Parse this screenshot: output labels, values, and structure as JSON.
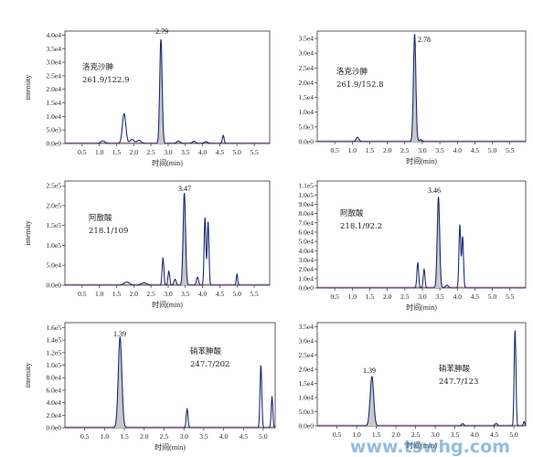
{
  "watermark": "www.tswhg.com",
  "chart_data": [
    {
      "type": "line",
      "ylabel": "intensity",
      "xlabel": "时间(min)",
      "x_ticks": [
        "0.5",
        "1.0",
        "1.5",
        "2.0",
        "2.5",
        "3.0",
        "3.5",
        "4.0",
        "4.5",
        "5.0",
        "5.5"
      ],
      "y_ticks": [
        "0.0e0",
        "5.0e3",
        "1.0e4",
        "1.5e4",
        "2.0e4",
        "2.5e4",
        "3.0e4",
        "3.5e4",
        "4.0e4"
      ],
      "xlim": [
        0.0,
        5.95
      ],
      "ylim": [
        0,
        41500
      ],
      "compound": "洛克沙胂",
      "transition": "261.9/122.9",
      "peak_label": "2.79",
      "peaks": [
        {
          "rt": 2.79,
          "height": 38500,
          "width": 0.035
        },
        {
          "rt": 1.72,
          "height": 11000,
          "width": 0.05
        },
        {
          "rt": 1.1,
          "height": 1000,
          "width": 0.06
        },
        {
          "rt": 1.95,
          "height": 1500,
          "width": 0.06
        },
        {
          "rt": 2.15,
          "height": 1200,
          "width": 0.06
        },
        {
          "rt": 3.3,
          "height": 900,
          "width": 0.05
        },
        {
          "rt": 3.75,
          "height": 800,
          "width": 0.05
        },
        {
          "rt": 4.1,
          "height": 700,
          "width": 0.05
        },
        {
          "rt": 4.6,
          "height": 3000,
          "width": 0.025
        }
      ]
    },
    {
      "type": "line",
      "ylabel": "",
      "xlabel": "时间(min)",
      "x_ticks": [
        "0.5",
        "1.0",
        "1.5",
        "2.0",
        "2.5",
        "3.0",
        "3.5",
        "4.0",
        "4.5",
        "5.0",
        "5.5"
      ],
      "y_ticks": [
        "0.0e0",
        "5.0e3",
        "1.0e4",
        "1.5e4",
        "2.0e4",
        "2.5e4",
        "3.0e4",
        "3.5e4"
      ],
      "xlim": [
        0.0,
        5.95
      ],
      "ylim": [
        0,
        37500
      ],
      "compound": "洛克沙胂",
      "transition": "261.9/152.8",
      "peak_label": "2.78",
      "peaks": [
        {
          "rt": 2.78,
          "height": 36500,
          "width": 0.035
        },
        {
          "rt": 1.15,
          "height": 1500,
          "width": 0.04
        },
        {
          "rt": 2.95,
          "height": 700,
          "width": 0.04
        }
      ]
    },
    {
      "type": "line",
      "ylabel": "intensity",
      "xlabel": "时间(min)",
      "x_ticks": [
        "0.5",
        "1.0",
        "1.5",
        "2.0",
        "2.5",
        "3.0",
        "3.5",
        "4.0",
        "4.5",
        "5.0",
        "5.5"
      ],
      "y_ticks": [
        "0.0e0",
        "5.0e4",
        "1.0e5",
        "1.5e5",
        "2.0e5",
        "2.5e5"
      ],
      "xlim": [
        0.0,
        5.95
      ],
      "ylim": [
        0,
        262000
      ],
      "compound": "阿散酸",
      "transition": "218.1/109",
      "peak_label": "3.47",
      "peaks": [
        {
          "rt": 3.47,
          "height": 232000,
          "width": 0.035
        },
        {
          "rt": 2.85,
          "height": 68000,
          "width": 0.025
        },
        {
          "rt": 3.02,
          "height": 35000,
          "width": 0.025
        },
        {
          "rt": 3.2,
          "height": 15000,
          "width": 0.03
        },
        {
          "rt": 3.85,
          "height": 20000,
          "width": 0.03
        },
        {
          "rt": 4.07,
          "height": 170000,
          "width": 0.025
        },
        {
          "rt": 4.16,
          "height": 160000,
          "width": 0.025
        },
        {
          "rt": 5.0,
          "height": 28000,
          "width": 0.02
        },
        {
          "rt": 1.8,
          "height": 8000,
          "width": 0.08
        },
        {
          "rt": 2.3,
          "height": 6000,
          "width": 0.08
        }
      ]
    },
    {
      "type": "line",
      "ylabel": "",
      "xlabel": "时间(min)",
      "x_ticks": [
        "0.5",
        "1.0",
        "1.5",
        "2.0",
        "2.5",
        "3.0",
        "3.5",
        "4.0",
        "4.5",
        "5.0",
        "5.5"
      ],
      "y_ticks": [
        "0.0e0",
        "1.0e4",
        "2.0e4",
        "3.0e4",
        "4.0e4",
        "5.0e4",
        "6.0e4",
        "7.0e4",
        "8.0e4",
        "9.0e4",
        "1.0e5",
        "1.1e5"
      ],
      "xlim": [
        0.0,
        5.95
      ],
      "ylim": [
        0,
        115000
      ],
      "compound": "阿散酸",
      "transition": "218.1/92.2",
      "peak_label": "3.46",
      "peaks": [
        {
          "rt": 3.46,
          "height": 98000,
          "width": 0.035
        },
        {
          "rt": 2.87,
          "height": 27000,
          "width": 0.025
        },
        {
          "rt": 3.05,
          "height": 20000,
          "width": 0.025
        },
        {
          "rt": 4.07,
          "height": 68000,
          "width": 0.025
        },
        {
          "rt": 4.15,
          "height": 55000,
          "width": 0.025
        },
        {
          "rt": 3.7,
          "height": 3000,
          "width": 0.04
        }
      ]
    },
    {
      "type": "line",
      "ylabel": "intensity",
      "xlabel": "时间(min)",
      "x_ticks": [
        "0.5",
        "1.0",
        "1.5",
        "2.0",
        "2.5",
        "3.0",
        "3.5",
        "4.0",
        "4.5",
        "5.0"
      ],
      "y_ticks": [
        "0.0e0",
        "2.0e4",
        "4.0e4",
        "6.0e4",
        "8.0e4",
        "1.0e5",
        "1.2e5",
        "1.4e5",
        "1.6e5"
      ],
      "xlim": [
        0.0,
        5.3
      ],
      "ylim": [
        0,
        168000
      ],
      "compound": "硝苯胂酸",
      "transition": "247.7/202",
      "peak_label": "1.39",
      "peaks": [
        {
          "rt": 1.39,
          "height": 145000,
          "width": 0.045
        },
        {
          "rt": 3.08,
          "height": 30000,
          "width": 0.022
        },
        {
          "rt": 4.94,
          "height": 100000,
          "width": 0.022
        },
        {
          "rt": 5.22,
          "height": 50000,
          "width": 0.02
        }
      ]
    },
    {
      "type": "line",
      "ylabel": "",
      "xlabel": "时间(min)",
      "x_ticks": [
        "0.5",
        "1.0",
        "1.5",
        "2.0",
        "2.5",
        "3.0",
        "3.5",
        "4.0",
        "4.5",
        "5.0"
      ],
      "y_ticks": [
        "0.0e0",
        "5.0e3",
        "1.0e4",
        "1.5e4",
        "2.0e4",
        "2.5e4",
        "3.0e4",
        "3.5e4"
      ],
      "xlim": [
        0.0,
        5.3
      ],
      "ylim": [
        0,
        36500
      ],
      "compound": "硝苯胂酸",
      "transition": "247.7/123",
      "peak_label": "1.39",
      "peaks": [
        {
          "rt": 1.39,
          "height": 17500,
          "width": 0.045
        },
        {
          "rt": 3.7,
          "height": 800,
          "width": 0.03
        },
        {
          "rt": 4.55,
          "height": 900,
          "width": 0.03
        },
        {
          "rt": 5.03,
          "height": 34000,
          "width": 0.022
        },
        {
          "rt": 5.26,
          "height": 1500,
          "width": 0.02
        }
      ]
    }
  ]
}
